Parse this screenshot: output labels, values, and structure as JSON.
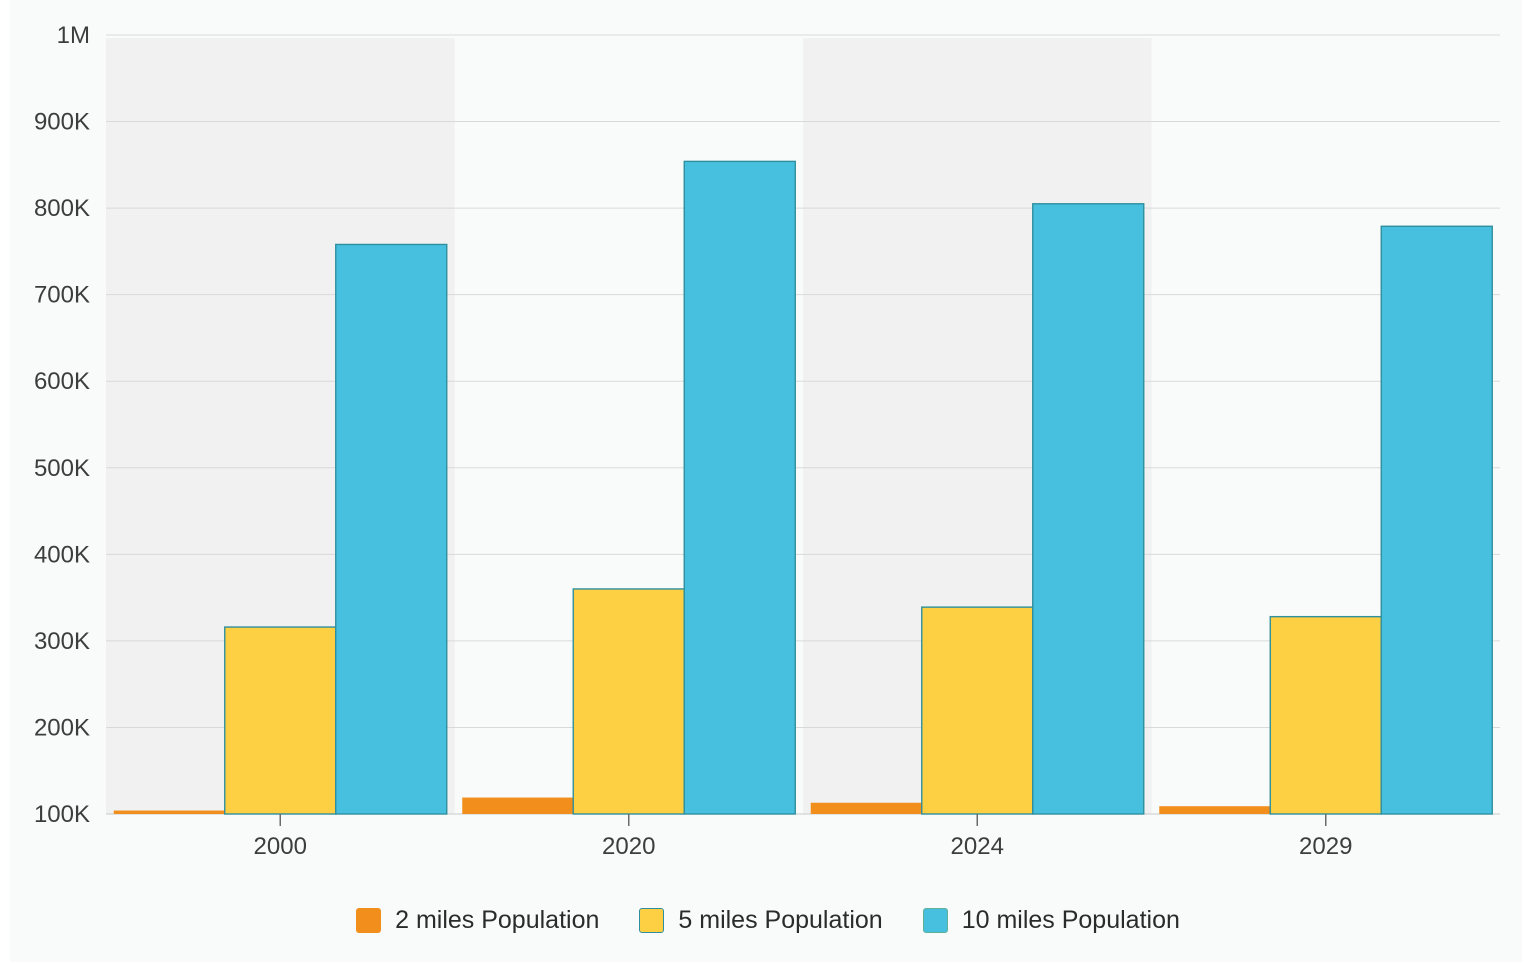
{
  "chart_data": {
    "type": "bar",
    "categories": [
      "2000",
      "2020",
      "2024",
      "2029"
    ],
    "series": [
      {
        "name": "2 miles Population",
        "values": [
          104000,
          119000,
          113000,
          109000
        ],
        "color": "#f28e1c"
      },
      {
        "name": "5 miles Population",
        "values": [
          316000,
          360000,
          339000,
          328000
        ],
        "color": "#fdd043"
      },
      {
        "name": "10 miles Population",
        "values": [
          758000,
          854000,
          805000,
          779000
        ],
        "color": "#47c0df"
      }
    ],
    "ylim": [
      100000,
      1000000
    ],
    "y_ticks": [
      100000,
      200000,
      300000,
      400000,
      500000,
      600000,
      700000,
      800000,
      900000,
      1000000
    ],
    "y_tick_labels": [
      "100K",
      "200K",
      "300K",
      "400K",
      "500K",
      "600K",
      "700K",
      "800K",
      "900K",
      "1M"
    ],
    "xlabel": "",
    "ylabel": "",
    "grid": true,
    "legend_position": "bottom-center",
    "bar_stroke_color": "#2f8f9e",
    "alternating_band_color": "#f0f1f0"
  }
}
